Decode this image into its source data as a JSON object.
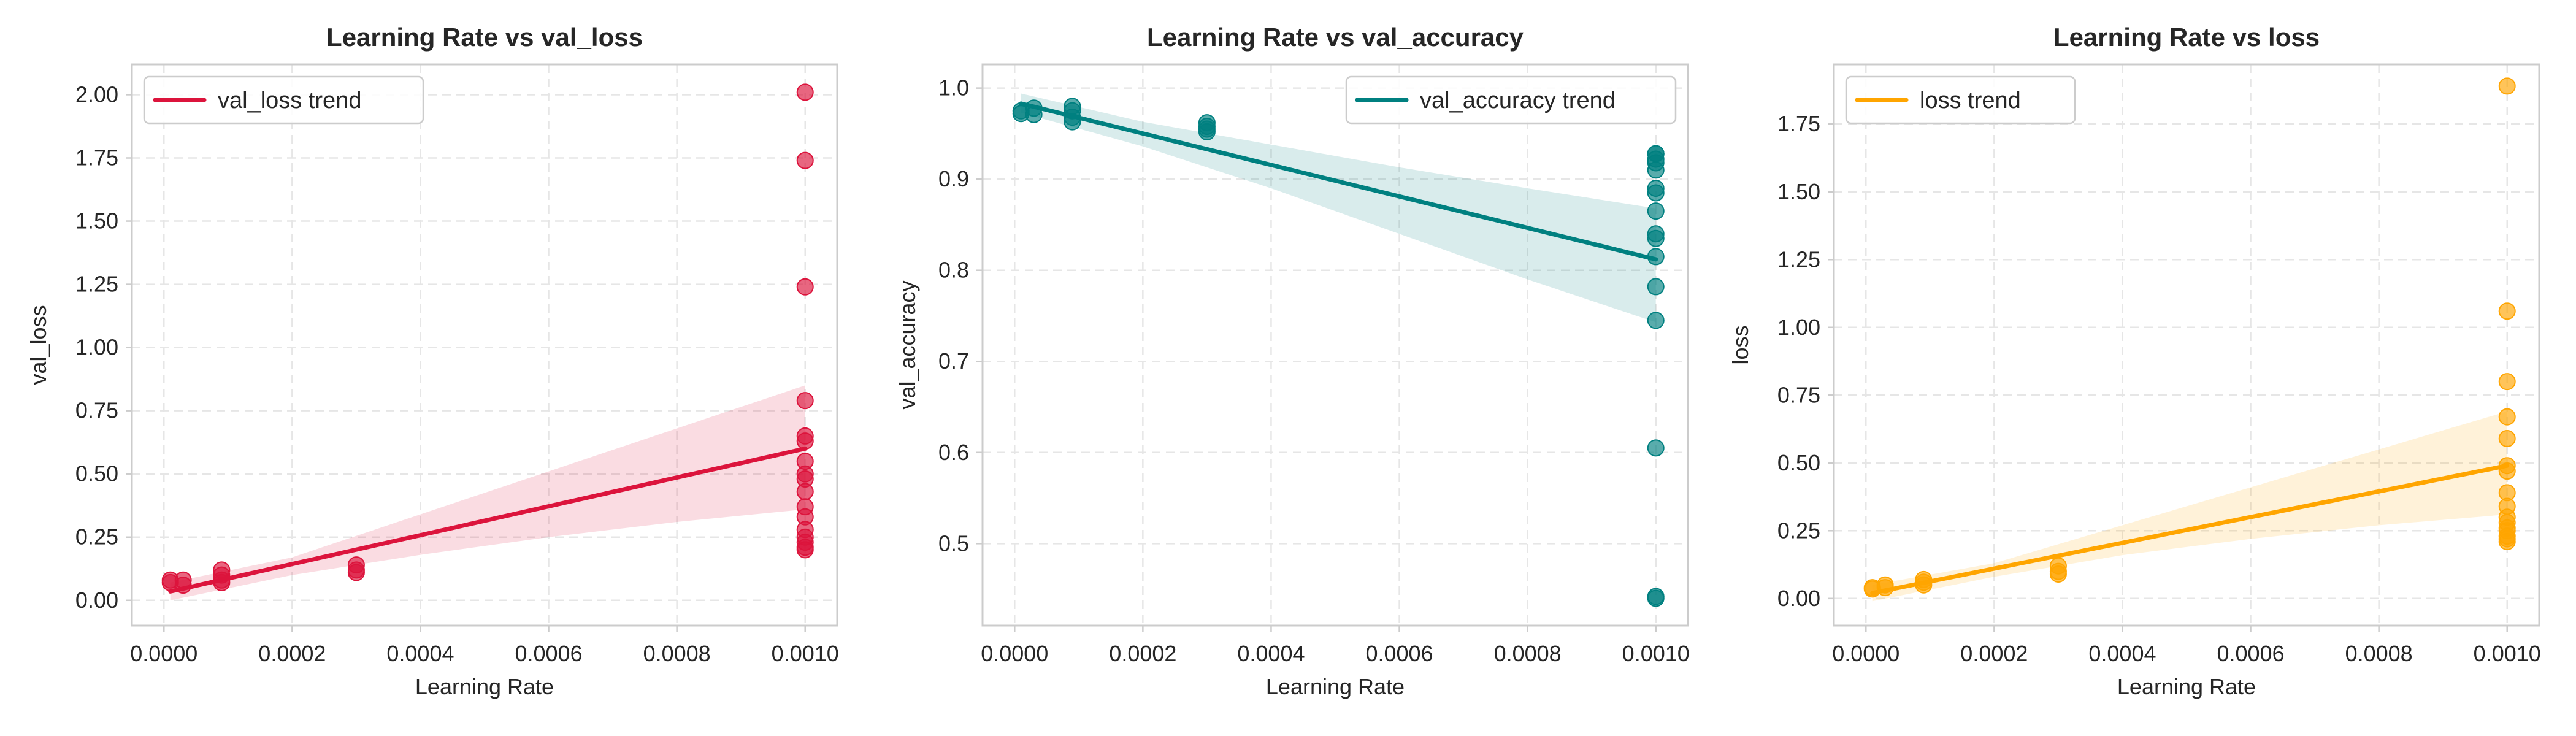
{
  "chart_data": [
    {
      "type": "scatter",
      "title": "Learning Rate vs val_loss",
      "xlabel": "Learning Rate",
      "ylabel": "val_loss",
      "xlim": [
        -5e-05,
        0.00105
      ],
      "ylim": [
        -0.1,
        2.12
      ],
      "xticks": [
        0,
        0.0002,
        0.0004,
        0.0006,
        0.0008,
        0.001
      ],
      "xtick_labels": [
        "0.0000",
        "0.0002",
        "0.0004",
        "0.0006",
        "0.0008",
        "0.0010"
      ],
      "yticks": [
        0,
        0.25,
        0.5,
        0.75,
        1.0,
        1.25,
        1.5,
        1.75,
        2.0
      ],
      "ytick_labels": [
        "0.00",
        "0.25",
        "0.50",
        "0.75",
        "1.00",
        "1.25",
        "1.50",
        "1.75",
        "2.00"
      ],
      "color": "#dc143c",
      "legend": "val_loss trend",
      "legend_position": "top-left",
      "grid": true,
      "trend": {
        "x": [
          1e-05,
          0.001
        ],
        "y": [
          0.035,
          0.6
        ]
      },
      "band": {
        "x": [
          1e-05,
          0.0002,
          0.0004,
          0.0006,
          0.0008,
          0.001
        ],
        "lower": [
          0.0,
          0.1,
          0.18,
          0.25,
          0.31,
          0.36
        ],
        "upper": [
          0.07,
          0.17,
          0.34,
          0.51,
          0.68,
          0.85
        ]
      },
      "points": {
        "x": [
          1e-05,
          1e-05,
          3e-05,
          3e-05,
          9e-05,
          9e-05,
          9e-05,
          9e-05,
          0.0003,
          0.0003,
          0.0003,
          0.001,
          0.001,
          0.001,
          0.001,
          0.001,
          0.001,
          0.001,
          0.001,
          0.001,
          0.001,
          0.001,
          0.001,
          0.001,
          0.001,
          0.001,
          0.001,
          0.001
        ],
        "y": [
          0.08,
          0.07,
          0.08,
          0.06,
          0.12,
          0.1,
          0.08,
          0.07,
          0.14,
          0.12,
          0.11,
          2.01,
          1.74,
          1.24,
          0.79,
          0.65,
          0.63,
          0.55,
          0.5,
          0.48,
          0.43,
          0.37,
          0.33,
          0.28,
          0.25,
          0.23,
          0.21,
          0.2
        ]
      }
    },
    {
      "type": "scatter",
      "title": "Learning Rate vs val_accuracy",
      "xlabel": "Learning Rate",
      "ylabel": "val_accuracy",
      "xlim": [
        -5e-05,
        0.00105
      ],
      "ylim": [
        0.41,
        1.026
      ],
      "xticks": [
        0,
        0.0002,
        0.0004,
        0.0006,
        0.0008,
        0.001
      ],
      "xtick_labels": [
        "0.0000",
        "0.0002",
        "0.0004",
        "0.0006",
        "0.0008",
        "0.0010"
      ],
      "yticks": [
        0.5,
        0.6,
        0.7,
        0.8,
        0.9,
        1.0
      ],
      "ytick_labels": [
        "0.5",
        "0.6",
        "0.7",
        "0.8",
        "0.9",
        "1.0"
      ],
      "color": "#008080",
      "legend": "val_accuracy trend",
      "legend_position": "top-right",
      "grid": true,
      "trend": {
        "x": [
          1e-05,
          0.001
        ],
        "y": [
          0.983,
          0.812
        ]
      },
      "band": {
        "x": [
          1e-05,
          0.0002,
          0.0004,
          0.0006,
          0.0008,
          0.001
        ],
        "lower": [
          0.973,
          0.936,
          0.89,
          0.84,
          0.79,
          0.743
        ],
        "upper": [
          0.994,
          0.963,
          0.938,
          0.913,
          0.89,
          0.868
        ]
      },
      "points": {
        "x": [
          1e-05,
          1e-05,
          3e-05,
          3e-05,
          9e-05,
          9e-05,
          9e-05,
          9e-05,
          0.0003,
          0.0003,
          0.0003,
          0.0003,
          0.001,
          0.001,
          0.001,
          0.001,
          0.001,
          0.001,
          0.001,
          0.001,
          0.001,
          0.001,
          0.001,
          0.001,
          0.001,
          0.001,
          0.001,
          0.001
        ],
        "y": [
          0.975,
          0.972,
          0.978,
          0.971,
          0.98,
          0.975,
          0.968,
          0.963,
          0.962,
          0.958,
          0.955,
          0.952,
          0.928,
          0.922,
          0.91,
          0.89,
          0.885,
          0.865,
          0.84,
          0.835,
          0.815,
          0.782,
          0.745,
          0.605,
          0.442,
          0.44,
          0.928,
          0.918
        ]
      }
    },
    {
      "type": "scatter",
      "title": "Learning Rate vs loss",
      "xlabel": "Learning Rate",
      "ylabel": "loss",
      "xlim": [
        -5e-05,
        0.00105
      ],
      "ylim": [
        -0.1,
        1.97
      ],
      "xticks": [
        0,
        0.0002,
        0.0004,
        0.0006,
        0.0008,
        0.001
      ],
      "xtick_labels": [
        "0.0000",
        "0.0002",
        "0.0004",
        "0.0006",
        "0.0008",
        "0.0010"
      ],
      "yticks": [
        0,
        0.25,
        0.5,
        0.75,
        1.0,
        1.25,
        1.5,
        1.75
      ],
      "ytick_labels": [
        "0.00",
        "0.25",
        "0.50",
        "0.75",
        "1.00",
        "1.25",
        "1.50",
        "1.75"
      ],
      "color": "#ffa500",
      "legend": "loss trend",
      "legend_position": "top-left",
      "grid": true,
      "trend": {
        "x": [
          1e-05,
          0.001
        ],
        "y": [
          0.02,
          0.49
        ]
      },
      "band": {
        "x": [
          1e-05,
          0.0002,
          0.0004,
          0.0006,
          0.0008,
          0.001
        ],
        "lower": [
          -0.01,
          0.08,
          0.16,
          0.22,
          0.27,
          0.31
        ],
        "upper": [
          0.05,
          0.13,
          0.27,
          0.41,
          0.55,
          0.69
        ]
      },
      "points": {
        "x": [
          1e-05,
          1e-05,
          3e-05,
          3e-05,
          9e-05,
          9e-05,
          9e-05,
          0.0003,
          0.0003,
          0.0003,
          0.001,
          0.001,
          0.001,
          0.001,
          0.001,
          0.001,
          0.001,
          0.001,
          0.001,
          0.001,
          0.001,
          0.001,
          0.001,
          0.001,
          0.001,
          0.001
        ],
        "y": [
          0.04,
          0.035,
          0.05,
          0.04,
          0.07,
          0.06,
          0.05,
          0.12,
          0.1,
          0.09,
          1.89,
          1.06,
          0.8,
          0.67,
          0.59,
          0.49,
          0.47,
          0.39,
          0.34,
          0.3,
          0.28,
          0.26,
          0.25,
          0.23,
          0.22,
          0.21
        ]
      }
    }
  ]
}
